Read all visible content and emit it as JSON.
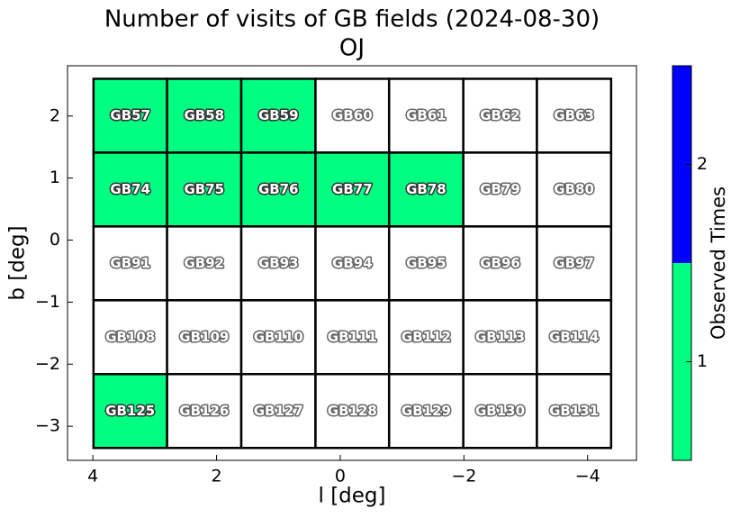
{
  "chart_data": {
    "type": "heatmap",
    "title": "Number of visits of GB fields (2024-08-30)",
    "subtitle": "OJ",
    "x_label": "l [deg]",
    "y_label": "b [deg]",
    "colorbar_label": "Observed Times",
    "l_edges": [
      3.99,
      2.8,
      1.6,
      0.4,
      -0.79,
      -1.99,
      -3.18,
      -4.38
    ],
    "b_edges": [
      2.6,
      1.41,
      0.22,
      -0.97,
      -2.16,
      -3.35
    ],
    "labels": [
      [
        "GB57",
        "GB58",
        "GB59",
        "GB60",
        "GB61",
        "GB62",
        "GB63"
      ],
      [
        "GB74",
        "GB75",
        "GB76",
        "GB77",
        "GB78",
        "GB79",
        "GB80"
      ],
      [
        "GB91",
        "GB92",
        "GB93",
        "GB94",
        "GB95",
        "GB96",
        "GB97"
      ],
      [
        "GB108",
        "GB109",
        "GB110",
        "GB111",
        "GB112",
        "GB113",
        "GB114"
      ],
      [
        "GB125",
        "GB126",
        "GB127",
        "GB128",
        "GB129",
        "GB130",
        "GB131"
      ]
    ],
    "values": [
      [
        1,
        1,
        1,
        null,
        null,
        null,
        null
      ],
      [
        1,
        1,
        1,
        1,
        1,
        null,
        null
      ],
      [
        null,
        null,
        null,
        null,
        null,
        null,
        null
      ],
      [
        null,
        null,
        null,
        null,
        null,
        null,
        null
      ],
      [
        1,
        null,
        null,
        null,
        null,
        null,
        null
      ]
    ],
    "colors": [
      "#00ff80",
      "#0000ff"
    ],
    "clim": [
      0.5,
      2.5
    ],
    "cticks": [
      1,
      2
    ],
    "xlim": [
      4.41,
      -4.79
    ],
    "ylim": [
      -3.55,
      2.81
    ],
    "xticks": [
      4,
      2,
      0,
      {
        "value": -2,
        "label": "−2"
      },
      {
        "value": -4,
        "label": "−4"
      }
    ],
    "yticks": [
      2,
      1,
      0,
      {
        "value": -1,
        "label": "−1"
      },
      {
        "value": -2,
        "label": "−2"
      },
      {
        "value": -3,
        "label": "−3"
      }
    ]
  }
}
